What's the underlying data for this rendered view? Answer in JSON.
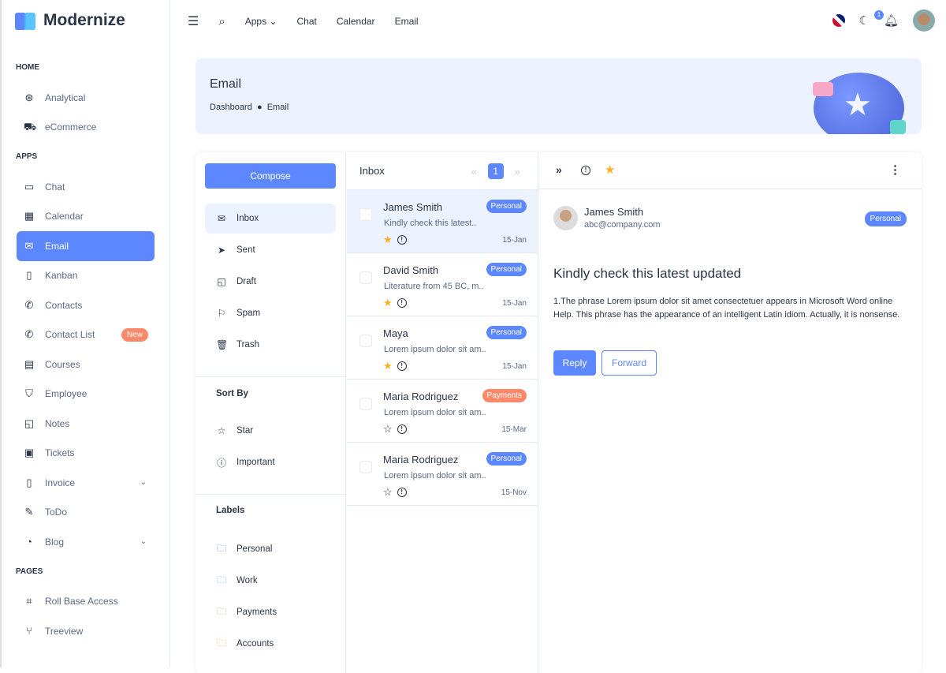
{
  "brand": {
    "name": "Modernize"
  },
  "sidebar": {
    "sections": [
      {
        "title": "HOME",
        "items": [
          {
            "label": "Analytical",
            "icon": "aperture-icon"
          },
          {
            "label": "eCommerce",
            "icon": "cart-icon"
          }
        ]
      },
      {
        "title": "APPS",
        "items": [
          {
            "label": "Chat",
            "icon": "message-icon"
          },
          {
            "label": "Calendar",
            "icon": "calendar-icon"
          },
          {
            "label": "Email",
            "icon": "mail-icon",
            "active": true
          },
          {
            "label": "Kanban",
            "icon": "notebook-icon"
          },
          {
            "label": "Contacts",
            "icon": "phone-icon"
          },
          {
            "label": "Contact List",
            "icon": "phone-icon",
            "badge": "New"
          },
          {
            "label": "Courses",
            "icon": "certificate-icon"
          },
          {
            "label": "Employee",
            "icon": "shield-icon"
          },
          {
            "label": "Notes",
            "icon": "note-icon"
          },
          {
            "label": "Tickets",
            "icon": "ticket-icon"
          },
          {
            "label": "Invoice",
            "icon": "file-icon",
            "expandable": true
          },
          {
            "label": "ToDo",
            "icon": "edit-icon"
          },
          {
            "label": "Blog",
            "icon": "chart-donut-icon",
            "expandable": true
          }
        ]
      },
      {
        "title": "PAGES",
        "items": [
          {
            "label": "Roll Base Access",
            "icon": "scan-icon"
          },
          {
            "label": "Treeview",
            "icon": "git-branch-icon"
          }
        ]
      }
    ]
  },
  "topbar": {
    "apps": "Apps",
    "chat": "Chat",
    "calendar": "Calendar",
    "email": "Email",
    "notifications": "1"
  },
  "banner": {
    "title": "Email",
    "crumb_home": "Dashboard",
    "crumb_current": "Email"
  },
  "folders": {
    "compose": "Compose",
    "items": [
      {
        "label": "Inbox",
        "icon": "inbox-icon",
        "active": true
      },
      {
        "label": "Sent",
        "icon": "send-icon"
      },
      {
        "label": "Draft",
        "icon": "note-icon"
      },
      {
        "label": "Spam",
        "icon": "flag-icon"
      },
      {
        "label": "Trash",
        "icon": "trash-icon"
      }
    ],
    "sort_title": "Sort By",
    "sort": [
      {
        "label": "Star",
        "icon": "star-icon"
      },
      {
        "label": "Important",
        "icon": "info-icon"
      }
    ],
    "labels_title": "Labels",
    "labels": [
      {
        "label": "Personal",
        "color": "#5d87ff"
      },
      {
        "label": "Work",
        "color": "#49beff"
      },
      {
        "label": "Payments",
        "color": "#fa896b"
      },
      {
        "label": "Accounts",
        "color": "#ffae1f"
      }
    ]
  },
  "list": {
    "title": "Inbox",
    "page": "1",
    "prev": "«",
    "next": "»",
    "emails": [
      {
        "name": "James Smith",
        "preview": "Kindly check this latest..",
        "tag": "Personal",
        "date": "15-Jan",
        "starred": true,
        "selected": true
      },
      {
        "name": "David Smith",
        "preview": "Literature from 45 BC, m..",
        "tag": "Personal",
        "date": "15-Jan",
        "starred": true
      },
      {
        "name": "Maya",
        "preview": "Lorem ipsum dolor sit am..",
        "tag": "Personal",
        "date": "15-Jan",
        "starred": true
      },
      {
        "name": "Maria Rodriguez",
        "preview": "Lorem ipsum dolor sit am..",
        "tag": "Payments",
        "date": "15-Mar",
        "starred": false
      },
      {
        "name": "Maria Rodriguez",
        "preview": "Lorem ipsum dolor sit am..",
        "tag": "Personal",
        "date": "15-Nov",
        "starred": false
      }
    ]
  },
  "detail": {
    "sender": "James Smith",
    "email": "abc@company.com",
    "tag": "Personal",
    "subject": "Kindly check this latest updated",
    "body": "1.The phrase Lorem ipsum dolor sit amet consectetuer appears in Microsoft Word online Help. This phrase has the appearance of an intelligent Latin idiom. Actually, it is nonsense.",
    "reply": "Reply",
    "forward": "Forward"
  },
  "colors": {
    "primary": "#5d87ff",
    "light": "#ecf2ff",
    "payments": "#fa896b",
    "star": "#ffae1f"
  }
}
